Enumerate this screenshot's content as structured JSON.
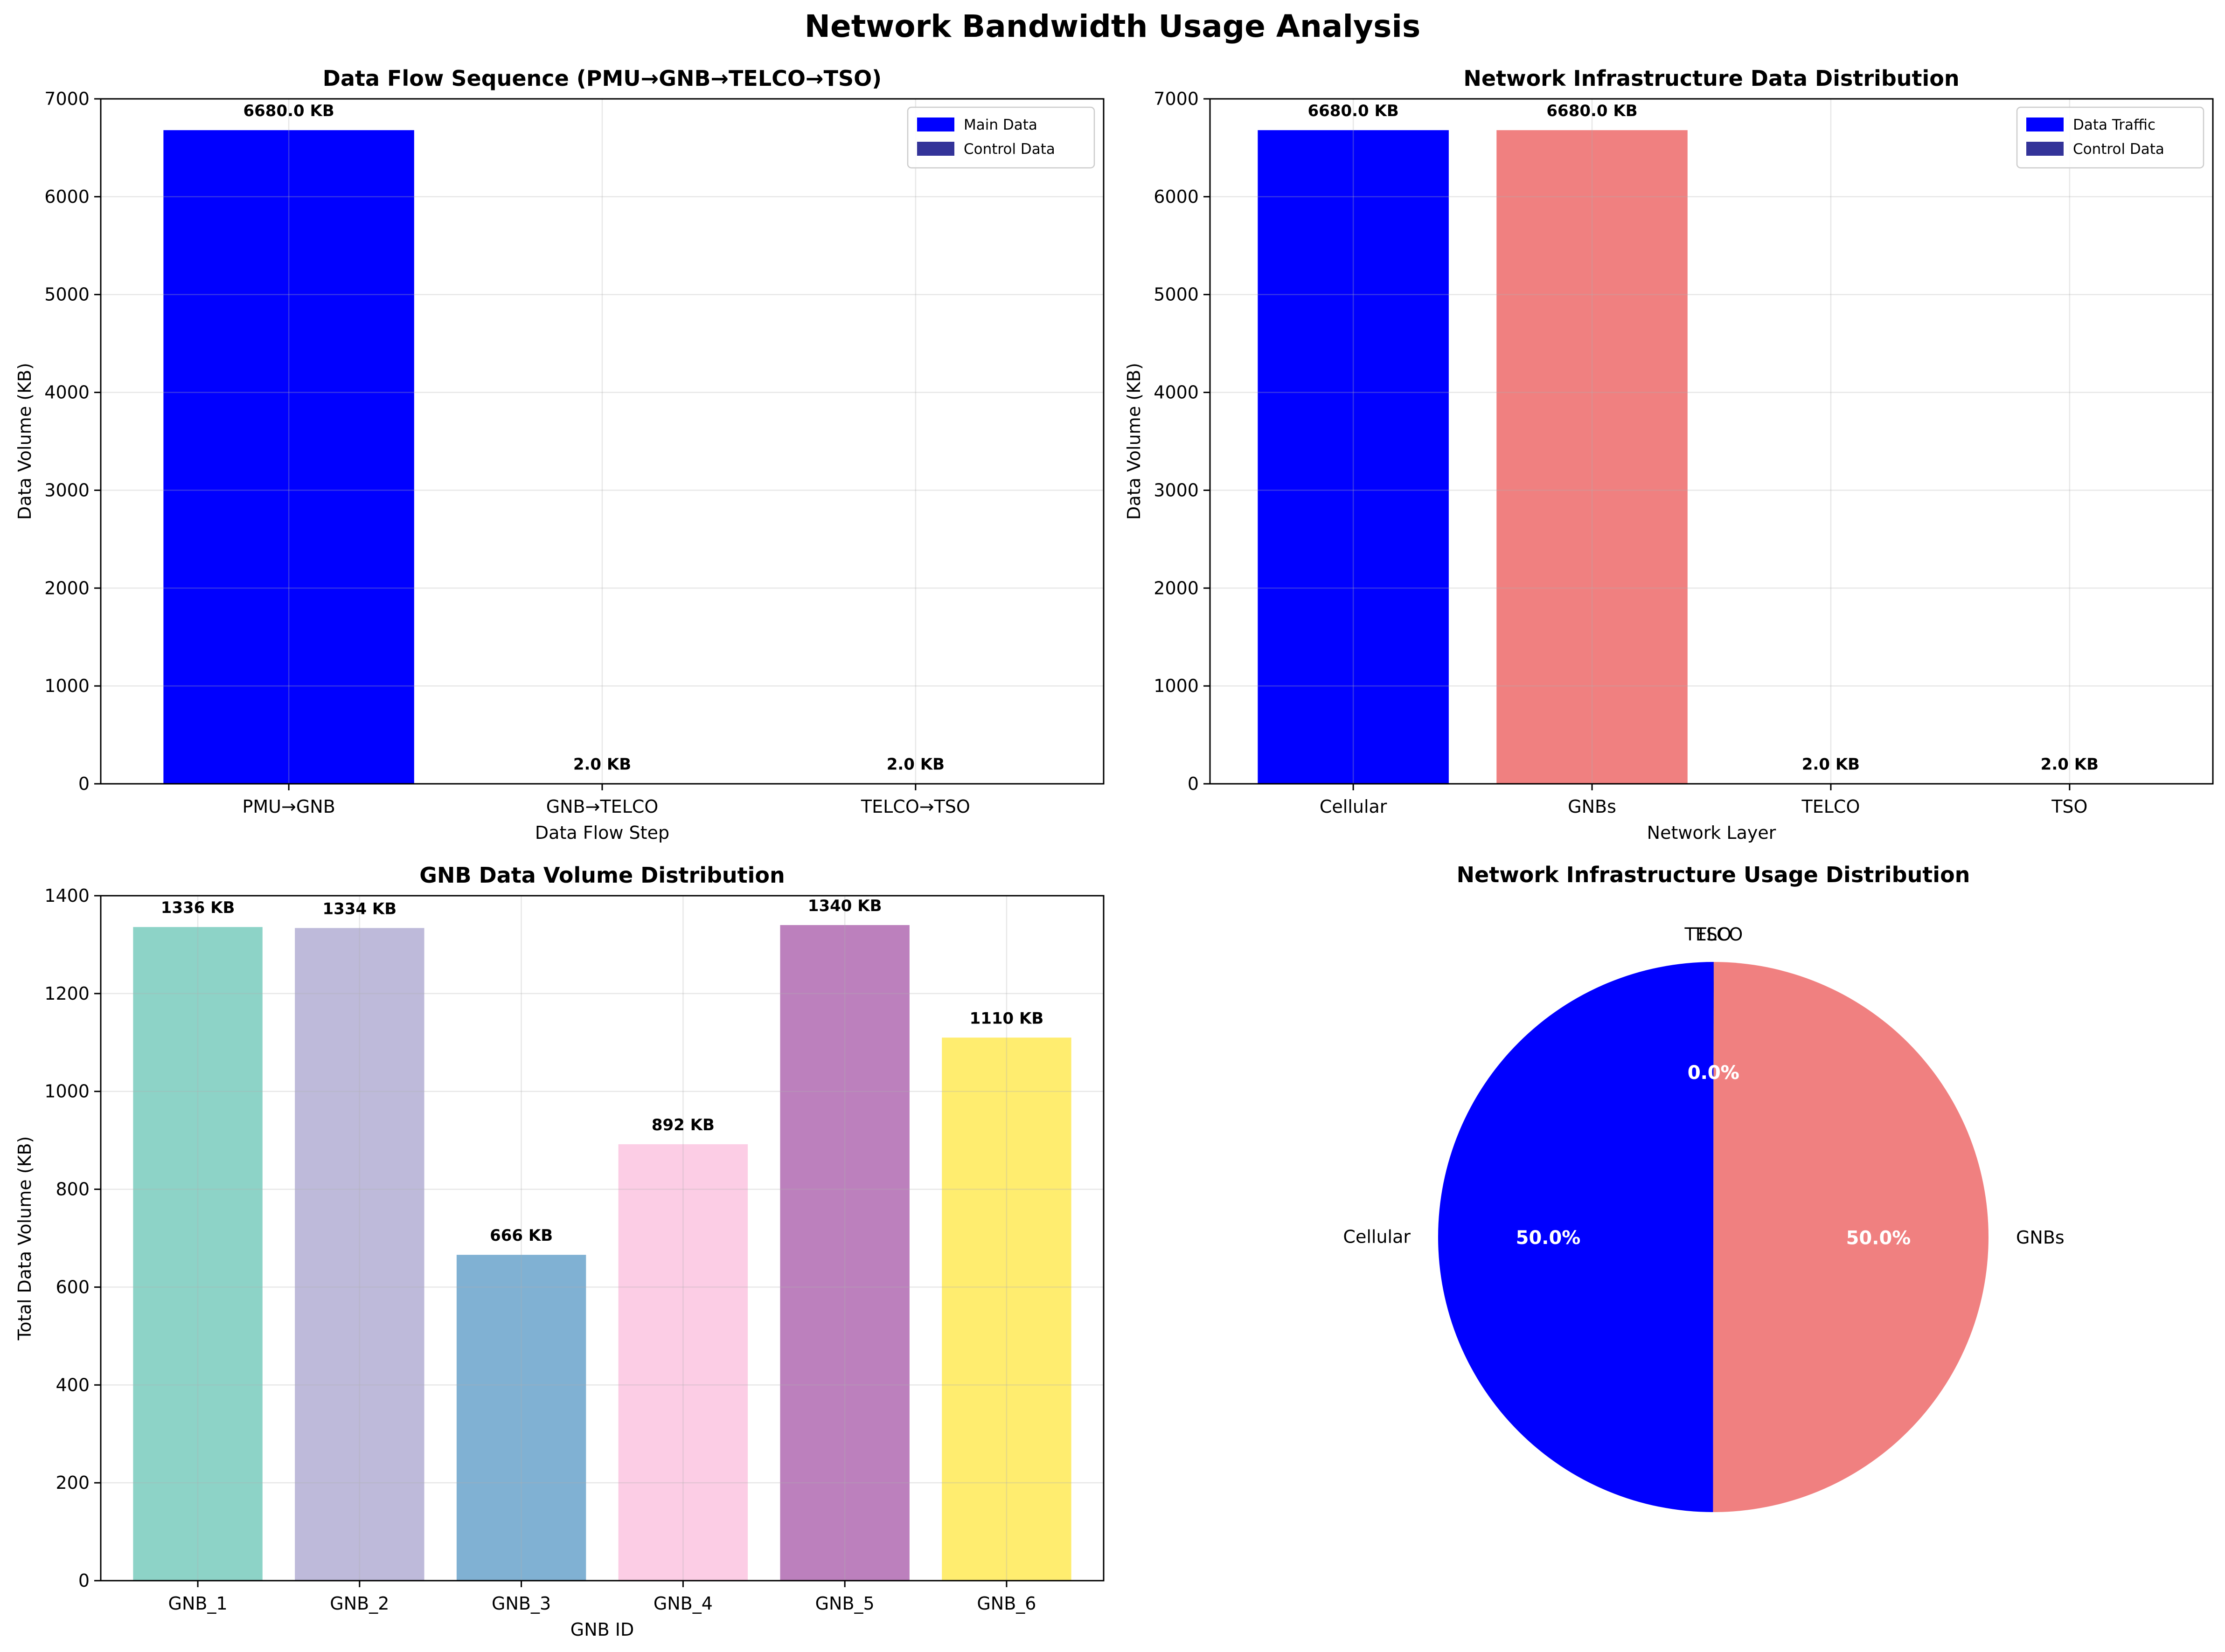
{
  "suptitle": "Network Bandwidth Usage Analysis",
  "chart_data": [
    {
      "id": "flow",
      "type": "bar",
      "title": "Data Flow Sequence (PMU→GNB→TELCO→TSO)",
      "xlabel": "Data Flow Step",
      "ylabel": "Data Volume (KB)",
      "categories": [
        "PMU→GNB",
        "GNB→TELCO",
        "TELCO→TSO"
      ],
      "series": [
        {
          "name": "Main Data",
          "values": [
            6680.0,
            0,
            0
          ],
          "color": "#0000ff"
        },
        {
          "name": "Control Data",
          "values": [
            0,
            2.0,
            2.0
          ],
          "color": "#333399"
        }
      ],
      "bar_labels": [
        "6680.0 KB",
        "2.0 KB",
        "2.0 KB"
      ],
      "ylim": [
        0,
        7000
      ],
      "yticks": [
        0,
        1000,
        2000,
        3000,
        4000,
        5000,
        6000,
        7000
      ],
      "grid": true,
      "legend_position": "top-right"
    },
    {
      "id": "infra",
      "type": "bar",
      "title": "Network Infrastructure Data Distribution",
      "xlabel": "Network Layer",
      "ylabel": "Data Volume (KB)",
      "categories": [
        "Cellular",
        "GNBs",
        "TELCO",
        "TSO"
      ],
      "series": [
        {
          "name": "Data Traffic",
          "values": [
            6680.0,
            6680.0,
            0,
            0
          ],
          "colors": [
            "#0000ff",
            "#f08080",
            "#0000ff",
            "#0000ff"
          ],
          "color": "#0000ff"
        },
        {
          "name": "Control Data",
          "values": [
            0,
            0,
            2.0,
            2.0
          ],
          "color": "#333399"
        }
      ],
      "bar_labels": [
        "6680.0 KB",
        "6680.0 KB",
        "2.0 KB",
        "2.0 KB"
      ],
      "ylim": [
        0,
        7000
      ],
      "yticks": [
        0,
        1000,
        2000,
        3000,
        4000,
        5000,
        6000,
        7000
      ],
      "grid": true,
      "legend_position": "top-right"
    },
    {
      "id": "gnb",
      "type": "bar",
      "title": "GNB Data Volume Distribution",
      "xlabel": "GNB ID",
      "ylabel": "Total Data Volume (KB)",
      "categories": [
        "GNB_1",
        "GNB_2",
        "GNB_3",
        "GNB_4",
        "GNB_5",
        "GNB_6"
      ],
      "values": [
        1336,
        1334,
        666,
        892,
        1340,
        1110
      ],
      "colors": [
        "#8dd3c7",
        "#bebada",
        "#80b1d3",
        "#fccde5",
        "#bc80bd",
        "#ffed6f"
      ],
      "bar_labels": [
        "1336 KB",
        "1334 KB",
        "666 KB",
        "892 KB",
        "1340 KB",
        "1110 KB"
      ],
      "ylim": [
        0,
        1400
      ],
      "yticks": [
        0,
        200,
        400,
        600,
        800,
        1000,
        1200,
        1400
      ],
      "grid": true
    },
    {
      "id": "pie",
      "type": "pie",
      "title": "Network Infrastructure Usage Distribution",
      "labels": [
        "Cellular",
        "GNBs",
        "TELCO",
        "TSO"
      ],
      "values": [
        6680.0,
        6680.0,
        2.0,
        2.0
      ],
      "pct_labels": [
        "50.0%",
        "50.0%",
        "0.0%",
        "0.0%"
      ],
      "colors": [
        "#0000ff",
        "#f08080",
        "#0000ff",
        "#333399"
      ]
    }
  ]
}
